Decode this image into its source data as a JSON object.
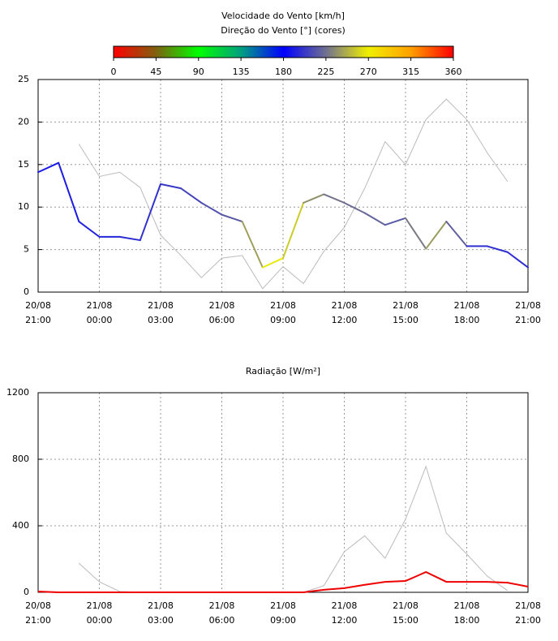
{
  "chart_data": [
    {
      "type": "line",
      "title": "Velocidade do Vento [km/h]",
      "subtitle": "Direção do Vento [°] (cores)",
      "colorbar": {
        "ticks": [
          0,
          45,
          90,
          135,
          180,
          225,
          270,
          315,
          360
        ],
        "colors": [
          "#ff0000",
          "#806010",
          "#00ff00",
          "#00a080",
          "#0000ff",
          "#707090",
          "#f0f000",
          "#ffa000",
          "#ff0000"
        ]
      },
      "categories": [
        [
          "20/08",
          "21:00"
        ],
        null,
        null,
        [
          "21/08",
          "00:00"
        ],
        null,
        null,
        [
          "21/08",
          "03:00"
        ],
        null,
        null,
        [
          "21/08",
          "06:00"
        ],
        null,
        null,
        [
          "21/08",
          "09:00"
        ],
        null,
        null,
        [
          "21/08",
          "12:00"
        ],
        null,
        null,
        [
          "21/08",
          "15:00"
        ],
        null,
        null,
        [
          "21/08",
          "18:00"
        ],
        null,
        null,
        [
          "21/08",
          "21:00"
        ]
      ],
      "ylim": [
        0,
        25
      ],
      "yticks": [
        0,
        5,
        10,
        15,
        20,
        25
      ],
      "grid": true,
      "series": [
        {
          "color": "#bbbbbb",
          "values": [
            null,
            null,
            17.4,
            13.6,
            14.1,
            12.3,
            6.7,
            4.3,
            1.7,
            4.0,
            4.3,
            0.4,
            3.0,
            1.0,
            4.8,
            7.6,
            12.2,
            17.7,
            15.0,
            20.3,
            22.7,
            20.3,
            16.4,
            13.0,
            null
          ]
        },
        {
          "color_by": "directions",
          "values": [
            14.1,
            15.2,
            8.3,
            6.5,
            6.5,
            6.1,
            12.7,
            12.2,
            10.5,
            9.1,
            8.3,
            2.9,
            4.0,
            10.5,
            11.5,
            10.5,
            9.3,
            7.9,
            8.7,
            5.1,
            8.3,
            5.4,
            5.4,
            4.7,
            2.9
          ],
          "directions": [
            190,
            190,
            192,
            195,
            195,
            200,
            200,
            205,
            210,
            215,
            218,
            265,
            270,
            245,
            228,
            225,
            222,
            218,
            215,
            242,
            238,
            200,
            200,
            198,
            198
          ]
        }
      ]
    },
    {
      "type": "line",
      "title": "Radiação [W/m²]",
      "categories": [
        [
          "20/08",
          "21:00"
        ],
        null,
        null,
        [
          "21/08",
          "00:00"
        ],
        null,
        null,
        [
          "21/08",
          "03:00"
        ],
        null,
        null,
        [
          "21/08",
          "06:00"
        ],
        null,
        null,
        [
          "21/08",
          "09:00"
        ],
        null,
        null,
        [
          "21/08",
          "12:00"
        ],
        null,
        null,
        [
          "21/08",
          "15:00"
        ],
        null,
        null,
        [
          "21/08",
          "18:00"
        ],
        null,
        null,
        [
          "21/08",
          "21:00"
        ]
      ],
      "ylim": [
        0,
        1200
      ],
      "yticks": [
        0,
        400,
        800,
        1200
      ],
      "grid": true,
      "series": [
        {
          "color": "#bbbbbb",
          "values": [
            null,
            null,
            175,
            63,
            5,
            0,
            0,
            0,
            0,
            0,
            0,
            0,
            0,
            0,
            40,
            244,
            340,
            205,
            440,
            756,
            356,
            230,
            98,
            10,
            null
          ]
        },
        {
          "color": "#ee0000",
          "width": 2,
          "values": [
            5,
            0,
            0,
            0,
            0,
            0,
            0,
            0,
            0,
            0,
            0,
            0,
            0,
            0,
            15,
            25,
            45,
            63,
            68,
            122,
            63,
            63,
            63,
            58,
            34
          ]
        }
      ]
    }
  ]
}
